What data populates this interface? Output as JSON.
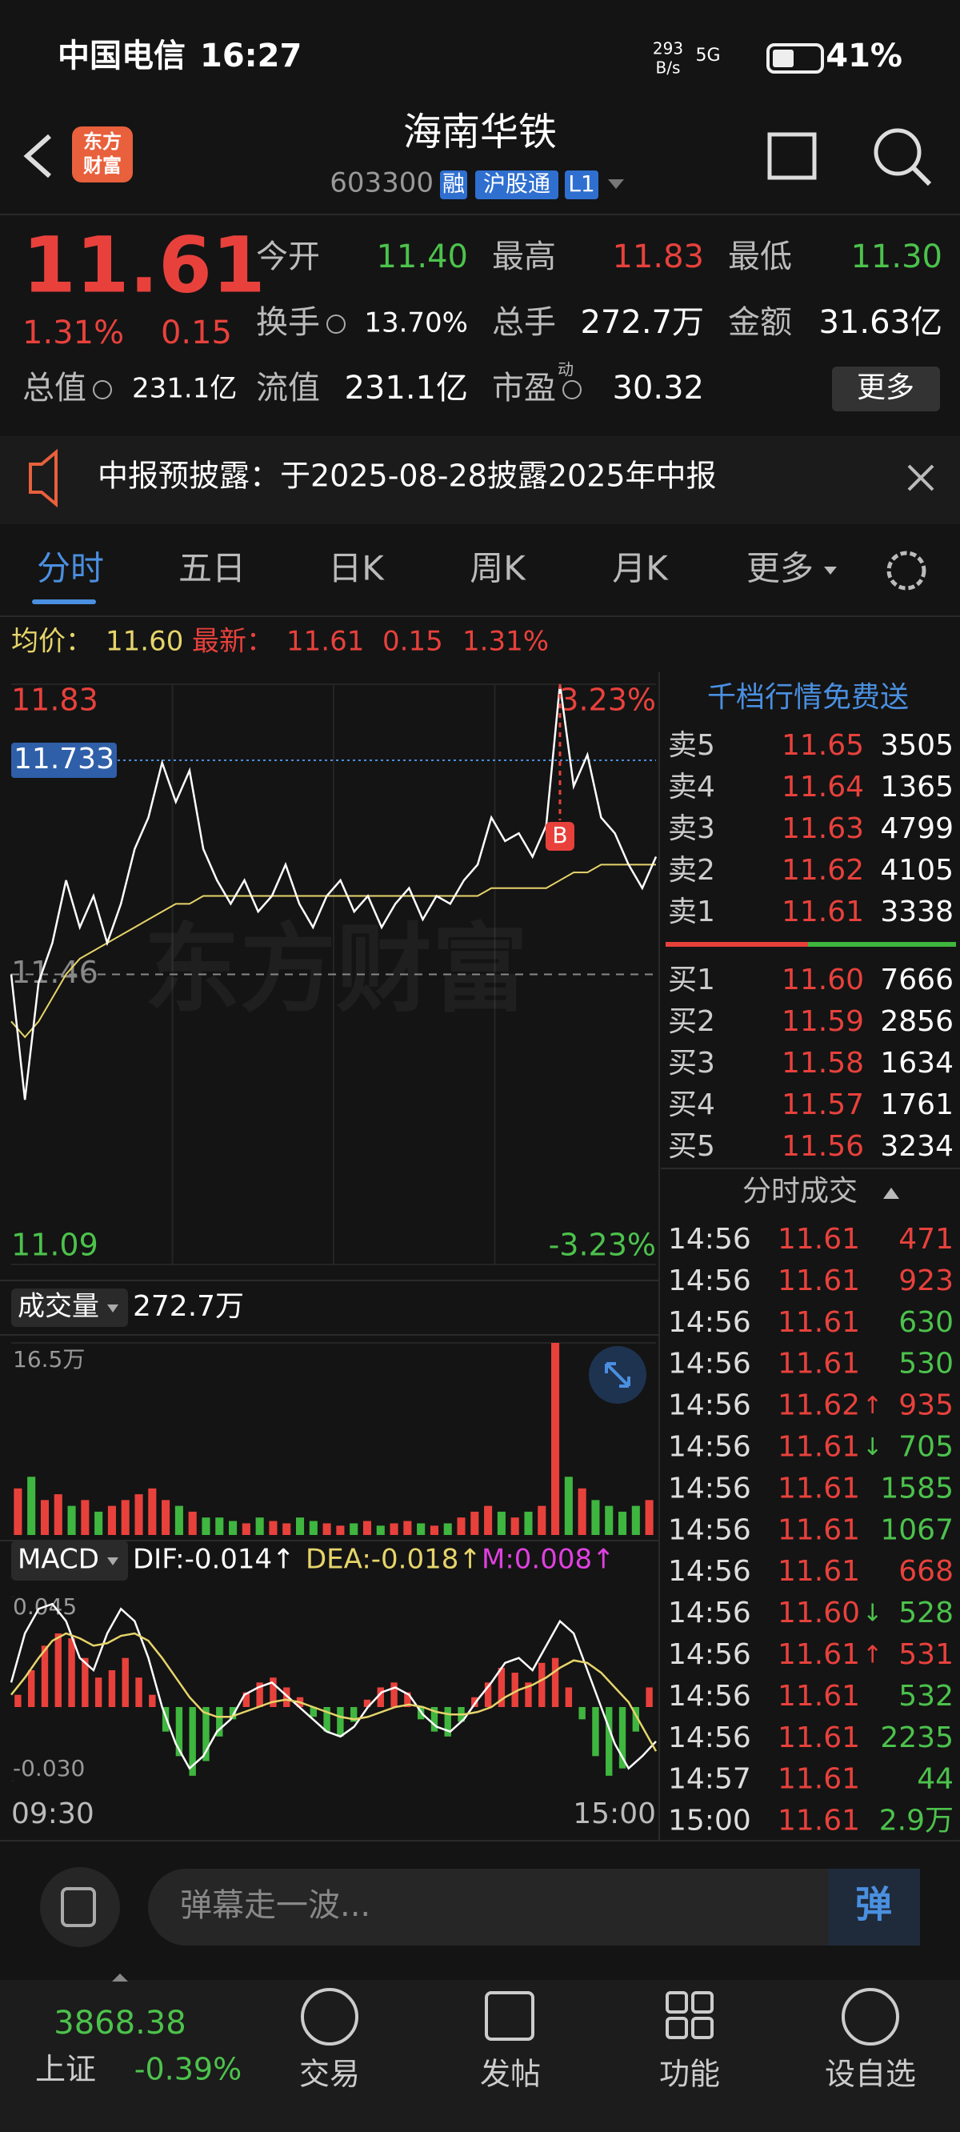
{
  "status": {
    "carrier": "中国电信",
    "time": "16:27",
    "net_top": "293",
    "net_bottom": "B/s",
    "signal": "5G",
    "battery": "41%"
  },
  "header": {
    "logo": [
      "东方",
      "财富"
    ],
    "title": "海南华铁",
    "code": "603300",
    "badges": [
      "融",
      "沪股通",
      "L1"
    ]
  },
  "quote": {
    "price": "11.61",
    "pct": "1.31%",
    "change": "0.15",
    "more": "更多",
    "fields": [
      {
        "label": "今开",
        "value": "11.40",
        "color": "#4cc24c"
      },
      {
        "label": "最高",
        "value": "11.83",
        "color": "#e8413c"
      },
      {
        "label": "最低",
        "value": "11.30",
        "color": "#4cc24c"
      },
      {
        "label": "换手",
        "value": "13.70%"
      },
      {
        "label": "总手",
        "value": "272.7万"
      },
      {
        "label": "金额",
        "value": "31.63亿"
      },
      {
        "label": "总值",
        "value": "231.1亿"
      },
      {
        "label": "流值",
        "value": "231.1亿"
      },
      {
        "label": "市盈",
        "sup": "动",
        "value": "30.32"
      }
    ]
  },
  "notice": "中报预披露：于2025-08-28披露2025年中报",
  "tabs": [
    "分时",
    "五日",
    "日K",
    "周K",
    "月K",
    "更多"
  ],
  "order_book": {
    "title": "千档行情免费送",
    "asks": [
      [
        "卖5",
        "11.65",
        "3505"
      ],
      [
        "卖4",
        "11.64",
        "1365"
      ],
      [
        "卖3",
        "11.63",
        "4799"
      ],
      [
        "卖2",
        "11.62",
        "4105"
      ],
      [
        "卖1",
        "11.61",
        "3338"
      ]
    ],
    "bids": [
      [
        "买1",
        "11.60",
        "7666"
      ],
      [
        "买2",
        "11.59",
        "2856"
      ],
      [
        "买3",
        "11.58",
        "1634"
      ],
      [
        "买4",
        "11.57",
        "1761"
      ],
      [
        "买5",
        "11.56",
        "3234"
      ]
    ]
  },
  "trades": {
    "title": "分时成交",
    "rows": [
      {
        "time": "14:56",
        "price": "11.61",
        "volume": "471",
        "color": "#e8413c"
      },
      {
        "time": "14:56",
        "price": "11.61",
        "volume": "923",
        "color": "#e8413c"
      },
      {
        "time": "14:56",
        "price": "11.61",
        "volume": "630",
        "color": "#4cc24c"
      },
      {
        "time": "14:56",
        "price": "11.61",
        "volume": "530",
        "color": "#4cc24c"
      },
      {
        "time": "14:56",
        "price": "11.62",
        "arrow": "↑",
        "volume": "935",
        "color": "#e8413c"
      },
      {
        "time": "14:56",
        "price": "11.61",
        "arrow": "↓",
        "volume": "705",
        "color": "#4cc24c"
      },
      {
        "time": "14:56",
        "price": "11.61",
        "volume": "1585",
        "color": "#4cc24c"
      },
      {
        "time": "14:56",
        "price": "11.61",
        "volume": "1067",
        "color": "#4cc24c"
      },
      {
        "time": "14:56",
        "price": "11.61",
        "volume": "668",
        "color": "#e8413c"
      },
      {
        "time": "14:56",
        "price": "11.60",
        "arrow": "↓",
        "volume": "528",
        "color": "#4cc24c"
      },
      {
        "time": "14:56",
        "price": "11.61",
        "arrow": "↑",
        "volume": "531",
        "color": "#e8413c"
      },
      {
        "time": "14:56",
        "price": "11.61",
        "volume": "532",
        "color": "#4cc24c"
      },
      {
        "time": "14:56",
        "price": "11.61",
        "volume": "2235",
        "color": "#4cc24c"
      },
      {
        "time": "14:57",
        "price": "11.61",
        "volume": "44",
        "color": "#4cc24c"
      },
      {
        "time": "15:00",
        "price": "11.61",
        "volume": "2.9万",
        "color": "#4cc24c"
      }
    ]
  },
  "chart_data": [
    {
      "type": "line",
      "watermark": "东方财富",
      "avg_text": "11.60",
      "latest_text": "11.61",
      "change_text": "0.15",
      "pct_text": "1.31%",
      "ylim": [
        11.09,
        11.83
      ],
      "yticks": [
        11.83,
        11.46,
        11.09
      ],
      "y2lim": [
        -3.23,
        3.23
      ],
      "y2ticks": [
        {
          "value": 3.23,
          "label": "3.23%"
        },
        {
          "value": -3.23,
          "label": "-3.23%"
        }
      ],
      "marker": 11.733,
      "trade_marker": "B",
      "series": [
        {
          "name": "最新：",
          "color": "#ffffff",
          "values": [
            11.46,
            11.3,
            11.45,
            11.5,
            11.58,
            11.52,
            11.56,
            11.5,
            11.55,
            11.62,
            11.66,
            11.73,
            11.68,
            11.72,
            11.62,
            11.58,
            11.55,
            11.58,
            11.54,
            11.56,
            11.6,
            11.55,
            11.52,
            11.56,
            11.58,
            11.54,
            11.56,
            11.52,
            11.55,
            11.57,
            11.53,
            11.56,
            11.55,
            11.58,
            11.6,
            11.66,
            11.63,
            11.64,
            11.61,
            11.65,
            11.83,
            11.7,
            11.74,
            11.66,
            11.64,
            11.6,
            11.57,
            11.61
          ]
        },
        {
          "name": "均价：",
          "color": "#e6d46a",
          "values": [
            11.4,
            11.38,
            11.4,
            11.43,
            11.46,
            11.48,
            11.49,
            11.5,
            11.51,
            11.52,
            11.53,
            11.54,
            11.55,
            11.55,
            11.56,
            11.56,
            11.56,
            11.56,
            11.56,
            11.56,
            11.56,
            11.56,
            11.56,
            11.56,
            11.56,
            11.56,
            11.56,
            11.56,
            11.56,
            11.56,
            11.56,
            11.56,
            11.56,
            11.56,
            11.56,
            11.57,
            11.57,
            11.57,
            11.57,
            11.57,
            11.58,
            11.59,
            11.59,
            11.6,
            11.6,
            11.6,
            11.6,
            11.6
          ]
        }
      ]
    },
    {
      "type": "bar",
      "title": "成交量",
      "total": "272.7万",
      "ylim": [
        0,
        16.5
      ],
      "yticks": [
        {
          "value": 16.5,
          "label": "16.5万"
        }
      ],
      "values": [
        4,
        5,
        3,
        3.5,
        2.5,
        3,
        2,
        2.5,
        3,
        3.5,
        4,
        3,
        2.5,
        2,
        1.5,
        1.5,
        1.2,
        1,
        1.5,
        1.2,
        1,
        1.5,
        1.2,
        1,
        0.8,
        1,
        1.2,
        0.8,
        1,
        1.2,
        1,
        0.8,
        1,
        1.5,
        2,
        2.5,
        2,
        1.5,
        2,
        2.5,
        16.5,
        5,
        4,
        3,
        2.5,
        2,
        2.5,
        3
      ],
      "colors": [
        "#e8413c",
        "#3fb63f",
        "#e8413c",
        "#e8413c",
        "#3fb63f",
        "#e8413c",
        "#3fb63f",
        "#e8413c",
        "#e8413c",
        "#e8413c",
        "#e8413c",
        "#e8413c",
        "#3fb63f",
        "#e8413c",
        "#3fb63f",
        "#3fb63f",
        "#3fb63f",
        "#e8413c",
        "#3fb63f",
        "#e8413c",
        "#e8413c",
        "#3fb63f",
        "#3fb63f",
        "#e8413c",
        "#e8413c",
        "#3fb63f",
        "#e8413c",
        "#3fb63f",
        "#e8413c",
        "#e8413c",
        "#3fb63f",
        "#e8413c",
        "#3fb63f",
        "#e8413c",
        "#e8413c",
        "#e8413c",
        "#3fb63f",
        "#e8413c",
        "#3fb63f",
        "#e8413c",
        "#e8413c",
        "#3fb63f",
        "#e8413c",
        "#3fb63f",
        "#3fb63f",
        "#3fb63f",
        "#3fb63f",
        "#e8413c"
      ]
    },
    {
      "type": "macd",
      "title": "MACD",
      "legend": [
        {
          "text": "DIF:-0.014↑",
          "color": "#ffffff"
        },
        {
          "text": "DEA:-0.018↑",
          "color": "#e6d46a"
        },
        {
          "text": "M:0.008↑",
          "color": "#e040e0"
        }
      ],
      "ylim": [
        -0.03,
        0.045
      ],
      "yticks": [
        0.045,
        {
          "value": -0.03,
          "label": "-0.030"
        }
      ],
      "x_labels": [
        "09:30",
        "15:00"
      ],
      "up_color": "#e8413c",
      "down_color": "#3fb63f",
      "values": [
        0.005,
        0.015,
        0.025,
        0.03,
        0.028,
        0.02,
        0.012,
        0.015,
        0.02,
        0.012,
        0.005,
        -0.01,
        -0.02,
        -0.028,
        -0.022,
        -0.012,
        -0.005,
        0.006,
        0.01,
        0.012,
        0.008,
        0.004,
        -0.004,
        -0.01,
        -0.012,
        -0.006,
        0.003,
        0.008,
        0.01,
        0.006,
        -0.005,
        -0.01,
        -0.012,
        -0.006,
        0.004,
        0.01,
        0.016,
        0.014,
        0.01,
        0.018,
        0.02,
        0.008,
        -0.005,
        -0.02,
        -0.028,
        -0.025,
        -0.01,
        0.008
      ],
      "series": [
        {
          "color": "#ffffff",
          "values": [
            0.01,
            0.03,
            0.04,
            0.042,
            0.035,
            0.02,
            0.015,
            0.03,
            0.04,
            0.035,
            0.02,
            0,
            -0.015,
            -0.025,
            -0.02,
            -0.01,
            -0.005,
            0.005,
            0.008,
            0.01,
            0.005,
            0,
            -0.005,
            -0.01,
            -0.012,
            -0.008,
            0,
            0.006,
            0.008,
            0.005,
            -0.003,
            -0.008,
            -0.01,
            -0.005,
            0.003,
            0.01,
            0.018,
            0.02,
            0.015,
            0.025,
            0.035,
            0.03,
            0.015,
            0,
            -0.015,
            -0.025,
            -0.02,
            -0.014
          ]
        },
        {
          "color": "#e6d46a",
          "values": [
            0.005,
            0.012,
            0.02,
            0.027,
            0.03,
            0.028,
            0.025,
            0.026,
            0.029,
            0.03,
            0.027,
            0.02,
            0.012,
            0.004,
            -0.002,
            -0.004,
            -0.004,
            -0.002,
            0,
            0.002,
            0.003,
            0.002,
            0,
            -0.002,
            -0.004,
            -0.005,
            -0.004,
            -0.002,
            0,
            0.001,
            0,
            -0.002,
            -0.003,
            -0.003,
            -0.002,
            0,
            0.004,
            0.007,
            0.009,
            0.012,
            0.016,
            0.019,
            0.018,
            0.014,
            0.008,
            0.002,
            -0.008,
            -0.018
          ]
        }
      ]
    }
  ],
  "comment": {
    "placeholder": "弹幕走一波...",
    "button": "弹"
  },
  "nav": {
    "index_value": "3868.38",
    "index_name": "上证",
    "index_pct": "-0.39%",
    "items": [
      "交易",
      "发帖",
      "功能",
      "设自选"
    ]
  }
}
